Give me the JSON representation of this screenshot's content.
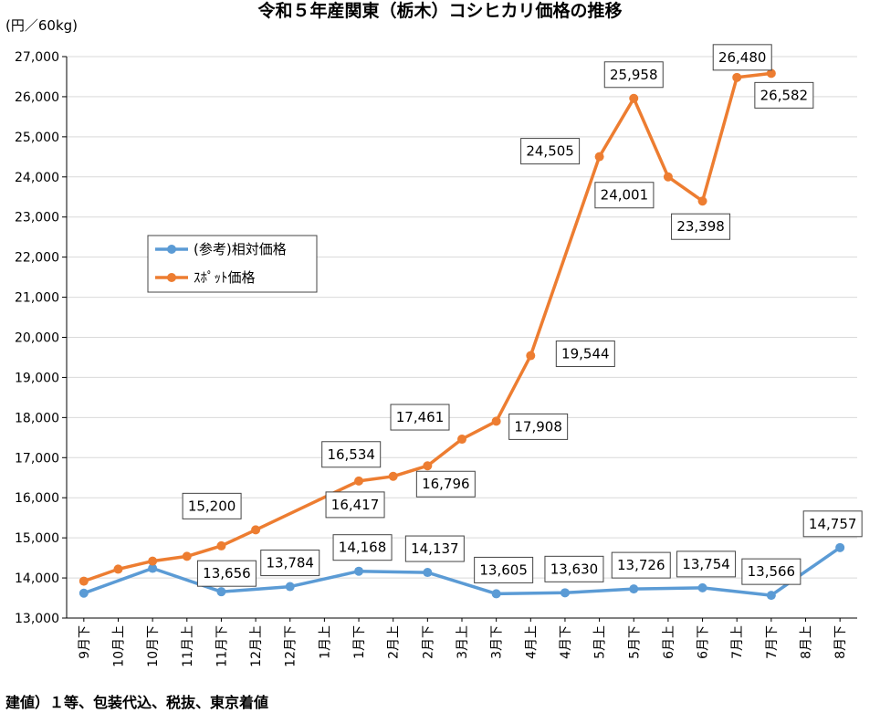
{
  "chart_data": {
    "type": "line",
    "title": "令和５年産関東（栃木）コシヒカリ価格の推移",
    "ylabel": "(円／60kg)",
    "ylim": [
      13000,
      27000
    ],
    "yticks": [
      13000,
      14000,
      15000,
      16000,
      17000,
      18000,
      19000,
      20000,
      21000,
      22000,
      23000,
      24000,
      25000,
      26000,
      27000
    ],
    "ytick_labels": [
      "13,000",
      "14,000",
      "15,000",
      "16,000",
      "17,000",
      "18,000",
      "19,000",
      "20,000",
      "21,000",
      "22,000",
      "23,000",
      "24,000",
      "25,000",
      "26,000",
      "27,000"
    ],
    "categories": [
      "9月下",
      "10月上",
      "10月下",
      "11月上",
      "11月下",
      "12月上",
      "12月下",
      "1月上",
      "1月下",
      "2月上",
      "2月下",
      "3月上",
      "3月下",
      "4月上",
      "4月下",
      "5月上",
      "5月下",
      "6月上",
      "6月下",
      "7月上",
      "7月下",
      "8月上",
      "8月下"
    ],
    "grid": true,
    "legend_position": "upper-left",
    "series": [
      {
        "name": "(参考)相対価格",
        "color": "#5B9BD5",
        "values": [
          13620,
          null,
          14240,
          null,
          13656,
          null,
          13784,
          null,
          14168,
          null,
          14137,
          null,
          13605,
          null,
          13630,
          null,
          13726,
          null,
          13754,
          null,
          13566,
          null,
          14757
        ],
        "labels": [
          null,
          null,
          null,
          null,
          "13,656",
          null,
          "13,784",
          null,
          "14,168",
          null,
          "14,137",
          null,
          "13,605",
          null,
          "13,630",
          null,
          "13,726",
          null,
          "13,754",
          null,
          "13,566",
          null,
          "14,757"
        ]
      },
      {
        "name": "ｽﾎﾟｯﾄ価格",
        "color": "#ED7D31",
        "values": [
          13920,
          14220,
          14420,
          14540,
          14800,
          15200,
          null,
          null,
          16417,
          16534,
          16796,
          17461,
          17908,
          19544,
          null,
          24505,
          25958,
          24001,
          23398,
          26480,
          26582,
          null,
          null
        ],
        "labels": [
          null,
          null,
          null,
          null,
          null,
          "15,200",
          null,
          null,
          "16,417",
          "16,534",
          "16,796",
          "17,461",
          "17,908",
          "19,544",
          null,
          "24,505",
          "25,958",
          "24,001",
          "23,398",
          "26,480",
          "26,582",
          null,
          null
        ]
      }
    ]
  },
  "footnote": "建値）１等、包装代込、税抜、東京着値"
}
